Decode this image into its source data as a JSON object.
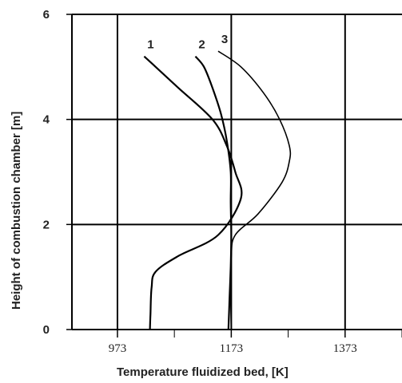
{
  "chart_data": {
    "type": "line",
    "xlabel": "Temperature fluidized bed, [K]",
    "ylabel": "Height of combustion chamber [m]",
    "x_ticks": [
      973,
      1173,
      1373
    ],
    "y_ticks": [
      0,
      2,
      4,
      6
    ],
    "xlim": [
      893,
      1473
    ],
    "ylim": [
      0,
      6
    ],
    "grid": true,
    "series": [
      {
        "name": "1",
        "points": [
          [
            1030,
            0
          ],
          [
            1031,
            0.3
          ],
          [
            1033,
            0.8
          ],
          [
            1040,
            1.1
          ],
          [
            1080,
            1.4
          ],
          [
            1150,
            1.8
          ],
          [
            1190,
            2.5
          ],
          [
            1180,
            3.0
          ],
          [
            1165,
            3.5
          ],
          [
            1140,
            4.0
          ],
          [
            1080,
            4.6
          ],
          [
            1040,
            5.0
          ],
          [
            1020,
            5.2
          ]
        ]
      },
      {
        "name": "2",
        "points": [
          [
            1168,
            0
          ],
          [
            1170,
            0.6
          ],
          [
            1172,
            1.2
          ],
          [
            1173,
            1.8
          ],
          [
            1172,
            2.4
          ],
          [
            1172,
            3.0
          ],
          [
            1165,
            3.6
          ],
          [
            1155,
            4.1
          ],
          [
            1140,
            4.6
          ],
          [
            1125,
            5.0
          ],
          [
            1110,
            5.2
          ]
        ]
      },
      {
        "name": "3",
        "points": [
          [
            1173,
            0
          ],
          [
            1172,
            0.7
          ],
          [
            1173,
            1.4
          ],
          [
            1180,
            1.8
          ],
          [
            1220,
            2.2
          ],
          [
            1262,
            2.8
          ],
          [
            1275,
            3.2
          ],
          [
            1275,
            3.5
          ],
          [
            1258,
            4.0
          ],
          [
            1230,
            4.5
          ],
          [
            1190,
            5.0
          ],
          [
            1150,
            5.3
          ]
        ]
      }
    ]
  }
}
